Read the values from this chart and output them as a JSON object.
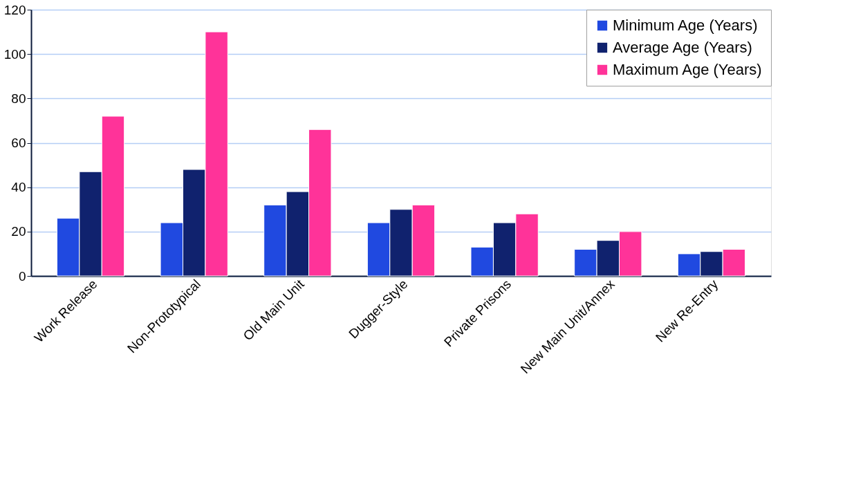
{
  "chart_data": {
    "type": "bar",
    "categories": [
      "Work Release",
      "Non-Prototypical",
      "Old Main Unit",
      "Dugger-Style",
      "Private Prisons",
      "New Main Unit/Annex",
      "New Re-Entry"
    ],
    "series": [
      {
        "name": "Minimum Age (Years)",
        "color": "#2049e0",
        "values": [
          26,
          24,
          32,
          24,
          13,
          12,
          10
        ]
      },
      {
        "name": "Average Age (Years)",
        "color": "#10226e",
        "values": [
          47,
          48,
          38,
          30,
          24,
          16,
          11
        ]
      },
      {
        "name": "Maximum Age (Years)",
        "color": "#ff3399",
        "values": [
          72,
          110,
          66,
          32,
          28,
          20,
          12
        ]
      }
    ],
    "ylim": [
      0,
      120
    ],
    "yticks": [
      0,
      20,
      40,
      60,
      80,
      100,
      120
    ],
    "grid": "y",
    "legend": "top right"
  }
}
